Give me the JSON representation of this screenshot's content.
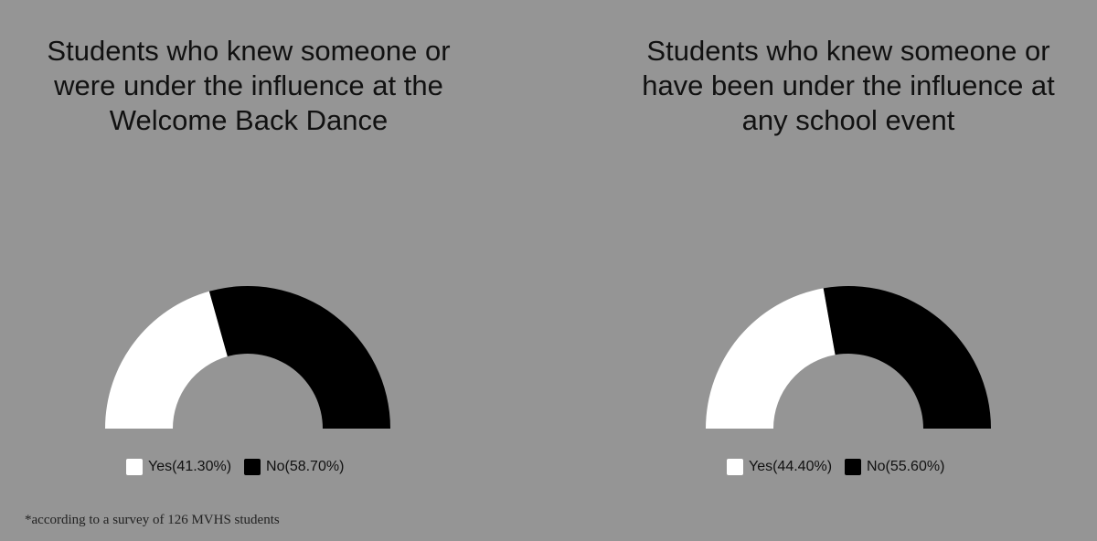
{
  "colors": {
    "background": "#959595",
    "yes": "#ffffff",
    "no": "#000000",
    "text": "#111111"
  },
  "chart_data": [
    {
      "type": "pie",
      "subtype": "half-donut",
      "title": "Students who knew someone or were under the influence at the Welcome Back Dance",
      "categories": [
        "Yes",
        "No"
      ],
      "values": [
        41.3,
        58.7
      ],
      "colors": [
        "#ffffff",
        "#000000"
      ],
      "legend_labels": [
        "Yes(41.30%)",
        "No(58.70%)"
      ],
      "legend_position": "bottom"
    },
    {
      "type": "pie",
      "subtype": "half-donut",
      "title": "Students who knew someone or have been under the influence at any school event",
      "categories": [
        "Yes",
        "No"
      ],
      "values": [
        44.4,
        55.6
      ],
      "colors": [
        "#ffffff",
        "#000000"
      ],
      "legend_labels": [
        "Yes(44.40%)",
        "No(55.60%)"
      ],
      "legend_position": "bottom"
    }
  ],
  "footnote": "*according to a survey of 126 MVHS students"
}
